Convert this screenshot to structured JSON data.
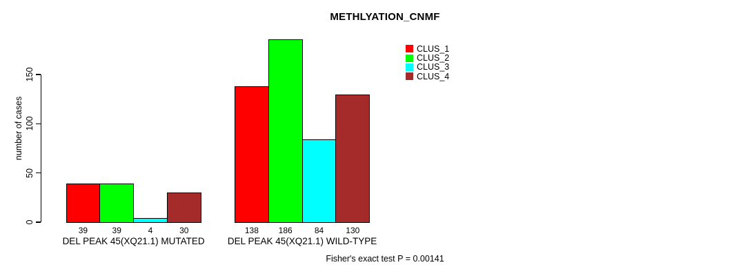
{
  "chart_data": {
    "type": "bar",
    "title": "METHLYATION_CNMF",
    "ylabel": "number of cases",
    "xlabel": "",
    "yticks": [
      0,
      50,
      100,
      150
    ],
    "ylim": [
      0,
      150
    ],
    "grid": false,
    "legend_position": "top-right",
    "bar_borders": true,
    "categories": [
      "DEL PEAK 45(XQ21.1) MUTATED",
      "DEL PEAK 45(XQ21.1) WILD-TYPE"
    ],
    "series": [
      {
        "name": "CLUS_1",
        "color": "#ff0000",
        "values": [
          39,
          138
        ]
      },
      {
        "name": "CLUS_2",
        "color": "#00ff00",
        "values": [
          39,
          186
        ]
      },
      {
        "name": "CLUS_3",
        "color": "#00ffff",
        "values": [
          4,
          84
        ]
      },
      {
        "name": "CLUS_4",
        "color": "#a52a2a",
        "values": [
          30,
          130
        ]
      }
    ],
    "annotation": "Fisher's exact test P = 0.00141"
  },
  "colors": {
    "background": "#ffffff",
    "axis": "#000000",
    "text": "#000000"
  }
}
